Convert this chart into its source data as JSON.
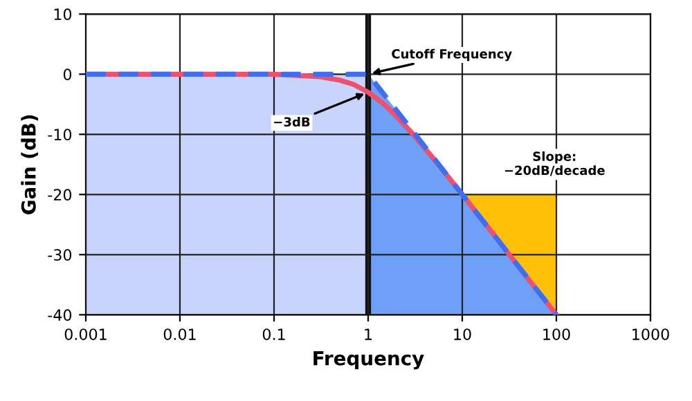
{
  "chart_data": {
    "type": "line",
    "xlabel": "Frequency",
    "ylabel": "Gain (dB)",
    "log": "x",
    "xlim": [
      0.001,
      1000
    ],
    "ylim": [
      -40,
      10
    ],
    "xticks": [
      0.001,
      0.01,
      0.1,
      1,
      10,
      100,
      1000
    ],
    "yticks": [
      -40,
      -30,
      -20,
      -10,
      0,
      10
    ],
    "grid": true,
    "legend": false,
    "series": [
      {
        "type": "area",
        "color": "#c8d4fb",
        "x": [
          0.001,
          0.001,
          1,
          1
        ],
        "values": [
          -40,
          0,
          0,
          -40
        ]
      },
      {
        "type": "area",
        "color": "#6fa0f8",
        "x": [
          1,
          1,
          100
        ],
        "values": [
          -40,
          0,
          -40
        ]
      },
      {
        "type": "area",
        "color": "#ffc107",
        "x": [
          10,
          100,
          100
        ],
        "values": [
          -20,
          -20,
          -40
        ]
      },
      {
        "color": "#f0506e",
        "x": [
          0.001,
          0.01,
          0.1,
          0.3,
          0.5,
          0.7,
          1,
          1.5,
          2,
          3,
          5,
          10,
          20,
          50,
          100
        ],
        "values": [
          0,
          0,
          0,
          -0.4,
          -1,
          -1.7,
          -3,
          -5.1,
          -7,
          -10,
          -14.1,
          -20,
          -26,
          -34,
          -40
        ]
      },
      {
        "color": "#3f6ff0",
        "line_style": "dashed",
        "x": [
          0.001,
          1,
          100
        ],
        "values": [
          0,
          0,
          -40
        ]
      }
    ],
    "ref_lines": [
      {
        "axis": "x",
        "value": 1,
        "color": "#111111"
      }
    ],
    "annotations": [
      {
        "text": "Cutoff Frequency",
        "x": 1,
        "y": 0
      },
      {
        "text": "−3dB",
        "x": 1,
        "y": -3
      },
      "Slope:\n−20dB/decade"
    ]
  }
}
